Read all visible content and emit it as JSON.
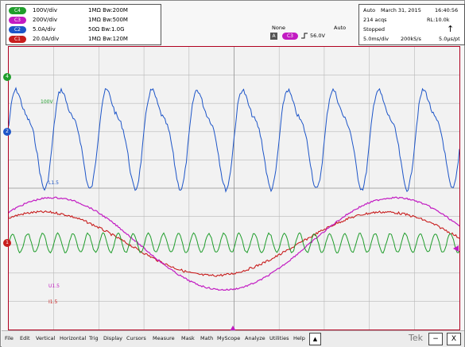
{
  "channels": [
    {
      "id": "C4",
      "scale": "100V/div",
      "impedance": "1MΩ Bw:200M",
      "color": "#1f9d2b"
    },
    {
      "id": "C3",
      "scale": "200V/div",
      "impedance": "1MΩ Bw:500M",
      "color": "#c21bc2"
    },
    {
      "id": "C2",
      "scale": "5.0A/div",
      "impedance": "50Ω Bw:1.0G",
      "color": "#1d55c8"
    },
    {
      "id": "C1",
      "scale": "20.0A/div",
      "impedance": "1MΩ Bw:120M",
      "color": "#c81d1d"
    }
  ],
  "trigger": {
    "mode": "None",
    "source_badge": "A",
    "channel": "C3",
    "level": "56.0V",
    "sweep": "Auto",
    "icon_name": "trigger-slope-icon"
  },
  "acquisition": {
    "mode": "Auto",
    "date": "March 31, 2015",
    "time": "16:40:56",
    "acqs": "214 acqs",
    "record_length": "RL:10.0k",
    "status": "Stopped",
    "timebase": "5.0ms/div",
    "sample_rate": "200kS/s",
    "resolution": "5.0μs/pt"
  },
  "waveform_labels": {
    "c4": "100V",
    "c2": "L1.5",
    "c3": "U1.5",
    "c1": "I1.5"
  },
  "menu": {
    "items": [
      "File",
      "Edit",
      "Vertical",
      "Horizontal",
      "Trig",
      "Display",
      "Cursors",
      "Measure",
      "Mask",
      "Math",
      "MyScope",
      "Analyze",
      "Utilities",
      "Help"
    ],
    "dropdown_arrow": "▲",
    "brand": "Tek",
    "minimize": "−",
    "close": "X"
  },
  "colors": {
    "c1": "#c81d1d",
    "c2": "#1d55c8",
    "c3": "#c21bc2",
    "c4": "#1f9d2b",
    "grid_border": "#b00020"
  }
}
